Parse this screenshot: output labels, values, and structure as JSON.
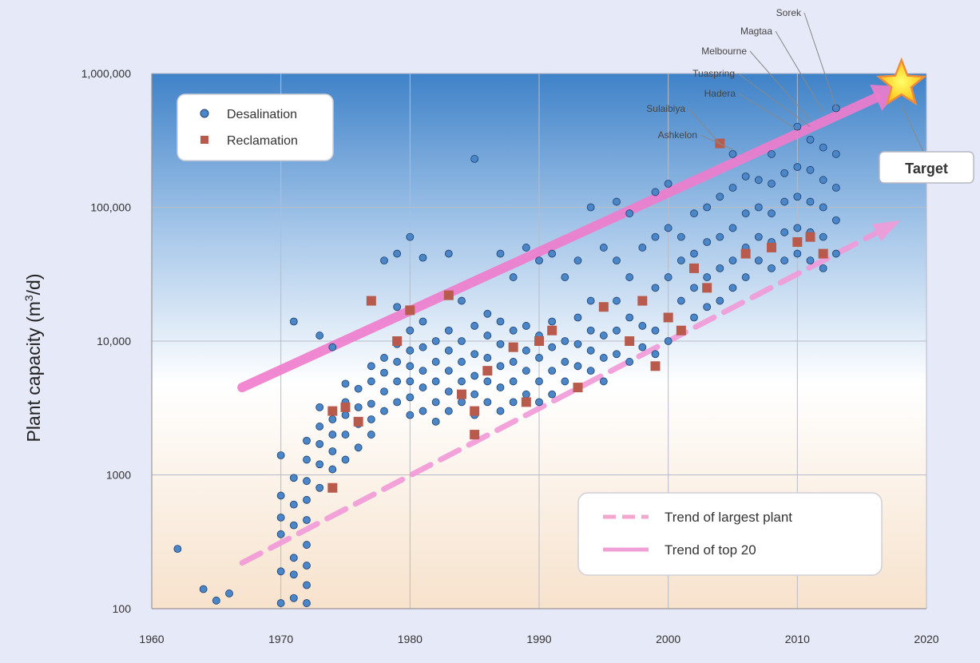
{
  "chart_data": {
    "type": "scatter",
    "title": "",
    "xlabel": "",
    "ylabel_prefix": "Plant capacity (m",
    "ylabel_sup": "3",
    "ylabel_suffix": "/d)",
    "y_scale": "log",
    "xlim": [
      1960,
      2020
    ],
    "ylim": [
      100,
      1000000
    ],
    "x_ticks": [
      1960,
      1970,
      1980,
      1990,
      2000,
      2010,
      2020
    ],
    "x_tick_labels": [
      "1960",
      "1970",
      "1980",
      "1990",
      "2000",
      "2010",
      "2020"
    ],
    "y_ticks": [
      100,
      1000,
      10000,
      100000,
      1000000
    ],
    "y_tick_labels": [
      "100",
      "1000",
      "10,000",
      "100,000",
      "1,000,000"
    ],
    "grid": true,
    "legend_top": {
      "placement": "top-left",
      "items": [
        {
          "label": "Desalination",
          "marker": "circle",
          "color": "#4a86c8"
        },
        {
          "label": "Reclamation",
          "marker": "square",
          "color": "#b85a4c"
        }
      ]
    },
    "legend_bottom": {
      "placement": "bottom-right",
      "items": [
        {
          "label": "Trend of largest plant",
          "color": "#f4a6cf"
        },
        {
          "label": "Trend of top 20",
          "color": "#f0a0d8"
        }
      ]
    },
    "series": [
      {
        "name": "Desalination",
        "marker": "circle",
        "color": "#4a86c8",
        "points": [
          [
            1962,
            280
          ],
          [
            1964,
            140
          ],
          [
            1965,
            115
          ],
          [
            1966,
            130
          ],
          [
            1970,
            110
          ],
          [
            1970,
            190
          ],
          [
            1970,
            360
          ],
          [
            1970,
            480
          ],
          [
            1970,
            700
          ],
          [
            1970,
            1400
          ],
          [
            1971,
            120
          ],
          [
            1971,
            180
          ],
          [
            1971,
            240
          ],
          [
            1971,
            420
          ],
          [
            1971,
            600
          ],
          [
            1971,
            950
          ],
          [
            1971,
            14000
          ],
          [
            1972,
            110
          ],
          [
            1972,
            150
          ],
          [
            1972,
            210
          ],
          [
            1972,
            300
          ],
          [
            1972,
            460
          ],
          [
            1972,
            650
          ],
          [
            1972,
            900
          ],
          [
            1972,
            1300
          ],
          [
            1972,
            1800
          ],
          [
            1973,
            800
          ],
          [
            1973,
            1200
          ],
          [
            1973,
            1700
          ],
          [
            1973,
            2300
          ],
          [
            1973,
            3200
          ],
          [
            1973,
            11000
          ],
          [
            1974,
            1100
          ],
          [
            1974,
            1500
          ],
          [
            1974,
            2000
          ],
          [
            1974,
            2600
          ],
          [
            1974,
            9000
          ],
          [
            1975,
            1300
          ],
          [
            1975,
            2000
          ],
          [
            1975,
            2800
          ],
          [
            1975,
            3500
          ],
          [
            1975,
            4800
          ],
          [
            1976,
            1600
          ],
          [
            1976,
            2400
          ],
          [
            1976,
            3200
          ],
          [
            1976,
            4400
          ],
          [
            1977,
            2000
          ],
          [
            1977,
            2600
          ],
          [
            1977,
            3400
          ],
          [
            1977,
            5000
          ],
          [
            1977,
            6500
          ],
          [
            1978,
            3000
          ],
          [
            1978,
            4200
          ],
          [
            1978,
            5800
          ],
          [
            1978,
            7500
          ],
          [
            1978,
            40000
          ],
          [
            1979,
            3500
          ],
          [
            1979,
            5000
          ],
          [
            1979,
            7000
          ],
          [
            1979,
            9500
          ],
          [
            1979,
            18000
          ],
          [
            1979,
            45000
          ],
          [
            1980,
            2800
          ],
          [
            1980,
            3800
          ],
          [
            1980,
            5000
          ],
          [
            1980,
            6500
          ],
          [
            1980,
            8500
          ],
          [
            1980,
            12000
          ],
          [
            1980,
            60000
          ],
          [
            1981,
            3000
          ],
          [
            1981,
            4500
          ],
          [
            1981,
            6000
          ],
          [
            1981,
            9000
          ],
          [
            1981,
            14000
          ],
          [
            1981,
            42000
          ],
          [
            1982,
            2500
          ],
          [
            1982,
            3500
          ],
          [
            1982,
            5000
          ],
          [
            1982,
            7000
          ],
          [
            1982,
            10000
          ],
          [
            1983,
            3000
          ],
          [
            1983,
            4200
          ],
          [
            1983,
            6000
          ],
          [
            1983,
            8500
          ],
          [
            1983,
            12000
          ],
          [
            1983,
            45000
          ],
          [
            1984,
            3500
          ],
          [
            1984,
            5000
          ],
          [
            1984,
            7000
          ],
          [
            1984,
            10000
          ],
          [
            1984,
            20000
          ],
          [
            1985,
            2800
          ],
          [
            1985,
            4000
          ],
          [
            1985,
            5500
          ],
          [
            1985,
            8000
          ],
          [
            1985,
            13000
          ],
          [
            1985,
            230000
          ],
          [
            1986,
            3500
          ],
          [
            1986,
            5000
          ],
          [
            1986,
            7500
          ],
          [
            1986,
            11000
          ],
          [
            1986,
            16000
          ],
          [
            1987,
            3000
          ],
          [
            1987,
            4500
          ],
          [
            1987,
            6500
          ],
          [
            1987,
            9500
          ],
          [
            1987,
            14000
          ],
          [
            1987,
            45000
          ],
          [
            1988,
            3500
          ],
          [
            1988,
            5000
          ],
          [
            1988,
            7000
          ],
          [
            1988,
            12000
          ],
          [
            1988,
            30000
          ],
          [
            1989,
            4000
          ],
          [
            1989,
            6000
          ],
          [
            1989,
            8500
          ],
          [
            1989,
            13000
          ],
          [
            1989,
            50000
          ],
          [
            1990,
            3500
          ],
          [
            1990,
            5000
          ],
          [
            1990,
            7500
          ],
          [
            1990,
            11000
          ],
          [
            1990,
            40000
          ],
          [
            1991,
            4000
          ],
          [
            1991,
            6000
          ],
          [
            1991,
            9000
          ],
          [
            1991,
            14000
          ],
          [
            1991,
            45000
          ],
          [
            1992,
            5000
          ],
          [
            1992,
            7000
          ],
          [
            1992,
            10000
          ],
          [
            1992,
            30000
          ],
          [
            1993,
            4500
          ],
          [
            1993,
            6500
          ],
          [
            1993,
            9500
          ],
          [
            1993,
            15000
          ],
          [
            1993,
            40000
          ],
          [
            1994,
            6000
          ],
          [
            1994,
            8500
          ],
          [
            1994,
            12000
          ],
          [
            1994,
            20000
          ],
          [
            1994,
            100000
          ],
          [
            1995,
            5000
          ],
          [
            1995,
            7500
          ],
          [
            1995,
            11000
          ],
          [
            1995,
            18000
          ],
          [
            1995,
            50000
          ],
          [
            1996,
            8000
          ],
          [
            1996,
            12000
          ],
          [
            1996,
            20000
          ],
          [
            1996,
            40000
          ],
          [
            1996,
            110000
          ],
          [
            1997,
            7000
          ],
          [
            1997,
            10000
          ],
          [
            1997,
            15000
          ],
          [
            1997,
            30000
          ],
          [
            1997,
            90000
          ],
          [
            1998,
            9000
          ],
          [
            1998,
            13000
          ],
          [
            1998,
            20000
          ],
          [
            1998,
            50000
          ],
          [
            1999,
            8000
          ],
          [
            1999,
            12000
          ],
          [
            1999,
            25000
          ],
          [
            1999,
            60000
          ],
          [
            1999,
            130000
          ],
          [
            2000,
            10000
          ],
          [
            2000,
            15000
          ],
          [
            2000,
            30000
          ],
          [
            2000,
            70000
          ],
          [
            2000,
            150000
          ],
          [
            2001,
            12000
          ],
          [
            2001,
            20000
          ],
          [
            2001,
            40000
          ],
          [
            2001,
            60000
          ],
          [
            2002,
            15000
          ],
          [
            2002,
            25000
          ],
          [
            2002,
            45000
          ],
          [
            2002,
            90000
          ],
          [
            2003,
            18000
          ],
          [
            2003,
            30000
          ],
          [
            2003,
            55000
          ],
          [
            2003,
            100000
          ],
          [
            2004,
            20000
          ],
          [
            2004,
            35000
          ],
          [
            2004,
            60000
          ],
          [
            2004,
            120000
          ],
          [
            2005,
            25000
          ],
          [
            2005,
            40000
          ],
          [
            2005,
            70000
          ],
          [
            2005,
            140000
          ],
          [
            2005,
            250000
          ],
          [
            2006,
            30000
          ],
          [
            2006,
            50000
          ],
          [
            2006,
            90000
          ],
          [
            2006,
            170000
          ],
          [
            2007,
            40000
          ],
          [
            2007,
            60000
          ],
          [
            2007,
            100000
          ],
          [
            2007,
            160000
          ],
          [
            2008,
            35000
          ],
          [
            2008,
            55000
          ],
          [
            2008,
            90000
          ],
          [
            2008,
            150000
          ],
          [
            2008,
            250000
          ],
          [
            2009,
            40000
          ],
          [
            2009,
            65000
          ],
          [
            2009,
            110000
          ],
          [
            2009,
            180000
          ],
          [
            2010,
            45000
          ],
          [
            2010,
            70000
          ],
          [
            2010,
            120000
          ],
          [
            2010,
            200000
          ],
          [
            2010,
            400000
          ],
          [
            2011,
            40000
          ],
          [
            2011,
            65000
          ],
          [
            2011,
            110000
          ],
          [
            2011,
            190000
          ],
          [
            2011,
            320000
          ],
          [
            2012,
            35000
          ],
          [
            2012,
            60000
          ],
          [
            2012,
            100000
          ],
          [
            2012,
            160000
          ],
          [
            2012,
            280000
          ],
          [
            2013,
            45000
          ],
          [
            2013,
            80000
          ],
          [
            2013,
            140000
          ],
          [
            2013,
            250000
          ],
          [
            2013,
            550000
          ]
        ]
      },
      {
        "name": "Reclamation",
        "marker": "square",
        "color": "#b85a4c",
        "points": [
          [
            1974,
            800
          ],
          [
            1974,
            3000
          ],
          [
            1975,
            3200
          ],
          [
            1976,
            2500
          ],
          [
            1977,
            20000
          ],
          [
            1979,
            10000
          ],
          [
            1980,
            17000
          ],
          [
            1983,
            22000
          ],
          [
            1984,
            4000
          ],
          [
            1985,
            2000
          ],
          [
            1985,
            3000
          ],
          [
            1986,
            6000
          ],
          [
            1988,
            9000
          ],
          [
            1989,
            3500
          ],
          [
            1990,
            10000
          ],
          [
            1991,
            12000
          ],
          [
            1993,
            4500
          ],
          [
            1995,
            18000
          ],
          [
            1997,
            10000
          ],
          [
            1998,
            20000
          ],
          [
            1999,
            6500
          ],
          [
            2000,
            15000
          ],
          [
            2001,
            12000
          ],
          [
            2002,
            35000
          ],
          [
            2003,
            25000
          ],
          [
            2004,
            300000
          ],
          [
            2006,
            45000
          ],
          [
            2008,
            50000
          ],
          [
            2010,
            55000
          ],
          [
            2011,
            60000
          ],
          [
            2012,
            45000
          ]
        ]
      }
    ],
    "trend_largest": [
      [
        1967,
        4500
      ],
      [
        2018,
        800000
      ]
    ],
    "trend_top20": [
      [
        1967,
        220
      ],
      [
        2018,
        80000
      ]
    ],
    "annotations": [
      {
        "label": "Sorek",
        "at": [
          2013,
          560000
        ]
      },
      {
        "label": "Magtaa",
        "at": [
          2012,
          520000
        ]
      },
      {
        "label": "Melbourne",
        "at": [
          2011,
          450000
        ]
      },
      {
        "label": "Tuaspring",
        "at": [
          2011,
          400000
        ]
      },
      {
        "label": "Hadera",
        "at": [
          2010,
          380000
        ]
      },
      {
        "label": "Sulaibiya",
        "at": [
          2004,
          300000
        ]
      },
      {
        "label": "Ashkelon",
        "at": [
          2005,
          270000
        ]
      }
    ],
    "target": {
      "label": "Target",
      "at": [
        2018,
        800000
      ]
    }
  }
}
